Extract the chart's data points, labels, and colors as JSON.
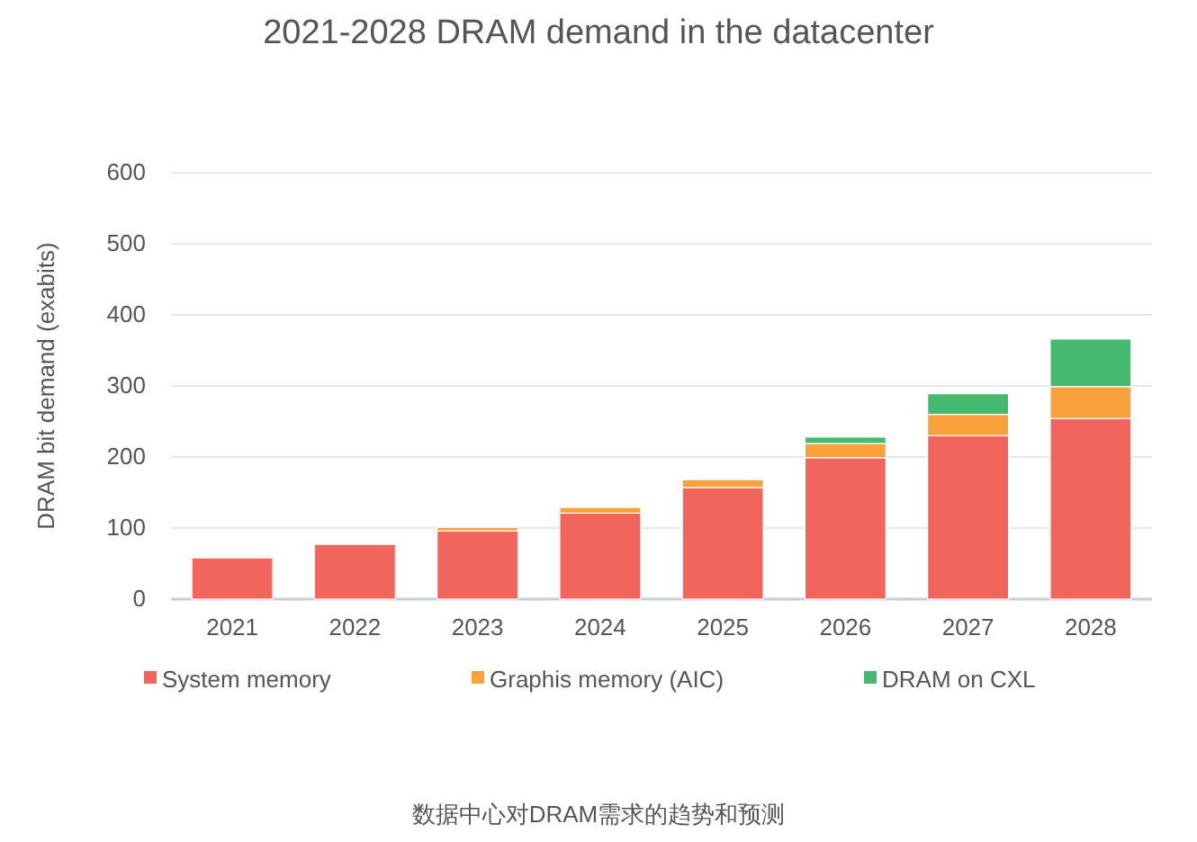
{
  "chart_data": {
    "type": "bar",
    "title": "2021-2028 DRAM demand in the datacenter",
    "ylabel": "DRAM bit demand (exabits)",
    "categories": [
      "2021",
      "2022",
      "2023",
      "2024",
      "2025",
      "2026",
      "2027",
      "2028"
    ],
    "stacked": true,
    "series": [
      {
        "name": "System memory",
        "color": "#f2655c",
        "values": [
          58,
          77,
          96,
          121,
          157,
          199,
          230,
          254
        ]
      },
      {
        "name": "Graphis memory (AIC)",
        "color": "#f9a23c",
        "values": [
          0,
          0,
          5,
          8,
          11,
          20,
          30,
          45
        ]
      },
      {
        "name": "DRAM on CXL",
        "color": "#45b96e",
        "values": [
          0,
          0,
          0,
          0,
          0,
          9,
          29,
          67
        ]
      }
    ],
    "ylim": [
      0,
      600
    ],
    "yticks": [
      0,
      100,
      200,
      300,
      400,
      500,
      600
    ],
    "grid": "y",
    "legend": "bottom",
    "annotations": [
      "数据中心对DRAM需求的趋势和预测"
    ]
  }
}
